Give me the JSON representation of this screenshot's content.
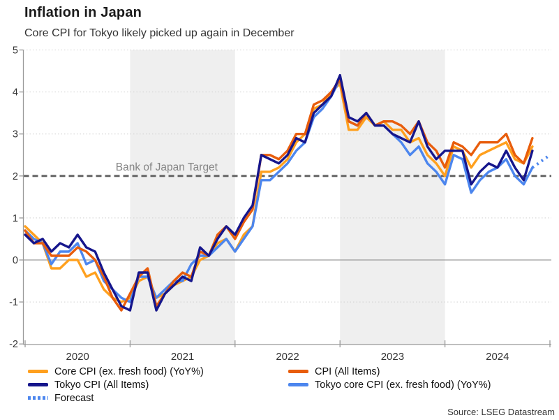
{
  "header": {
    "title": "Inflation in Japan",
    "subtitle": "Core CPI for Tokyo likely picked up again in December"
  },
  "source": "Source: LSEG Datastream",
  "colors": {
    "band": "#EFEFEF",
    "grid_dotted": "#CFCFCF",
    "zero_line": "#9C9C9C",
    "axis": "#999999",
    "target_line": "#666666",
    "target_text": "#858585",
    "axis_text": "#333333"
  },
  "chart_data": {
    "type": "line",
    "title": "Inflation in Japan",
    "subtitle": "Core CPI for Tokyo likely picked up again in December",
    "x_range": [
      "2020-01",
      "2024-11"
    ],
    "x_frequency": "monthly",
    "x_tick_labels": [
      "2020",
      "2021",
      "2022",
      "2023",
      "2024"
    ],
    "y_ticks": [
      5,
      4,
      3,
      2,
      1,
      0,
      -1,
      -2
    ],
    "ylim": [
      -2,
      5
    ],
    "grid": "dotted-horizontal",
    "shaded_year_bands": [
      "2021",
      "2023"
    ],
    "annotation": {
      "text": "Bank of Japan Target",
      "y": 2,
      "style": "dashed-line"
    },
    "legend_position": "bottom",
    "series": [
      {
        "name": "Core CPI (ex. fresh food) (YoY%)",
        "color": "#FFA01E",
        "style": "solid",
        "values": [
          0.8,
          0.6,
          0.4,
          -0.2,
          -0.2,
          0.0,
          0.0,
          -0.4,
          -0.3,
          -0.7,
          -0.9,
          -1.0,
          -0.9,
          -0.5,
          -0.4,
          -0.9,
          -0.8,
          -0.6,
          -0.5,
          -0.4,
          0.0,
          0.1,
          0.4,
          0.5,
          0.2,
          0.6,
          0.8,
          2.1,
          2.1,
          2.2,
          2.4,
          2.8,
          3.0,
          3.6,
          3.7,
          4.0,
          4.2,
          3.1,
          3.1,
          3.4,
          3.2,
          3.3,
          3.1,
          3.1,
          2.8,
          2.9,
          2.5,
          2.3,
          2.0,
          2.7,
          2.6,
          2.2,
          2.5,
          2.6,
          2.7,
          2.8,
          2.4,
          2.3,
          2.7
        ]
      },
      {
        "name": "CPI (All Items)",
        "color": "#E85D0C",
        "style": "solid",
        "values": [
          0.7,
          0.4,
          0.4,
          0.1,
          0.1,
          0.1,
          0.3,
          0.2,
          0.0,
          -0.4,
          -0.9,
          -1.2,
          -0.8,
          -0.4,
          -0.2,
          -1.1,
          -0.8,
          -0.5,
          -0.3,
          -0.4,
          0.2,
          0.1,
          0.6,
          0.8,
          0.5,
          0.9,
          1.2,
          2.5,
          2.5,
          2.4,
          2.6,
          3.0,
          3.0,
          3.7,
          3.8,
          4.0,
          4.3,
          3.3,
          3.2,
          3.5,
          3.2,
          3.3,
          3.3,
          3.2,
          3.0,
          3.3,
          2.8,
          2.6,
          2.2,
          2.8,
          2.7,
          2.5,
          2.8,
          2.8,
          2.8,
          3.0,
          2.5,
          2.3,
          2.9
        ]
      },
      {
        "name": "Tokyo CPI (All Items)",
        "color": "#16168C",
        "style": "solid",
        "values": [
          0.6,
          0.4,
          0.5,
          0.2,
          0.4,
          0.3,
          0.6,
          0.3,
          0.2,
          -0.3,
          -0.7,
          -1.1,
          -1.2,
          -0.3,
          -0.3,
          -1.2,
          -0.8,
          -0.6,
          -0.4,
          -0.5,
          0.3,
          0.1,
          0.5,
          0.8,
          0.6,
          1.0,
          1.3,
          2.5,
          2.4,
          2.3,
          2.5,
          2.9,
          2.8,
          3.5,
          3.7,
          3.9,
          4.4,
          3.4,
          3.3,
          3.5,
          3.2,
          3.2,
          3.0,
          2.9,
          2.8,
          3.3,
          2.7,
          2.4,
          2.6,
          2.6,
          2.6,
          1.8,
          2.1,
          2.3,
          2.2,
          2.6,
          2.2,
          1.9,
          2.6
        ]
      },
      {
        "name": "Tokyo core CPI (ex. fresh food) (YoY%)",
        "color": "#4C86EE",
        "style": "solid",
        "values": [
          0.7,
          0.5,
          0.4,
          -0.1,
          0.2,
          0.2,
          0.4,
          -0.1,
          0.0,
          -0.5,
          -0.7,
          -0.9,
          -1.0,
          -0.4,
          -0.4,
          -0.9,
          -0.7,
          -0.5,
          -0.5,
          -0.1,
          0.1,
          0.1,
          0.3,
          0.5,
          0.2,
          0.5,
          0.8,
          1.9,
          1.9,
          2.1,
          2.3,
          2.6,
          2.8,
          3.4,
          3.6,
          3.9,
          4.3,
          3.3,
          3.2,
          3.5,
          3.2,
          3.2,
          3.0,
          2.8,
          2.5,
          2.7,
          2.3,
          2.1,
          1.8,
          2.5,
          2.4,
          1.6,
          1.9,
          2.1,
          2.2,
          2.4,
          2.0,
          1.8,
          2.2
        ]
      },
      {
        "name": "Forecast",
        "color": "#4C86EE",
        "style": "dotted",
        "x_months": [
          "2024-11",
          "2024-12"
        ],
        "values": [
          2.2,
          2.5
        ]
      }
    ]
  },
  "legend": {
    "left_column": [
      0,
      2,
      4
    ],
    "right_column": [
      1,
      3
    ]
  }
}
